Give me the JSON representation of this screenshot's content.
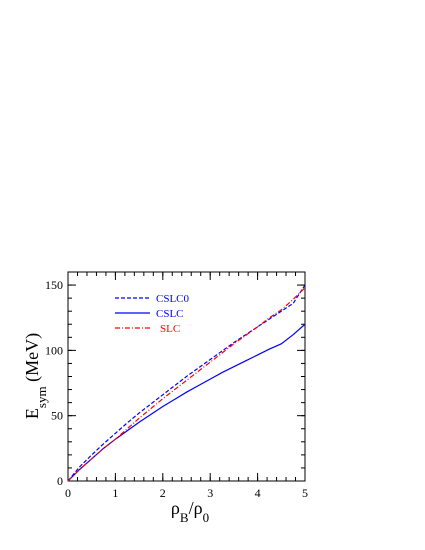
{
  "colors": {
    "background": "#ffffff",
    "axis": "#000000"
  },
  "chart_data": {
    "type": "line",
    "title": "",
    "xlabel": {
      "main": "ρ",
      "sub1": "B",
      "sep": "/ρ",
      "sub2": "0"
    },
    "ylabel": {
      "main": "E",
      "sub": "sym",
      "rest": " (MeV)"
    },
    "xlim": [
      0,
      5
    ],
    "ylim": [
      0,
      160
    ],
    "xticks": [
      0,
      1,
      2,
      3,
      4,
      5
    ],
    "yticks": [
      0,
      50,
      100,
      150
    ],
    "grid": false,
    "legend_position": "top-left",
    "series": [
      {
        "name": "CSLC0",
        "color": "#0000ff",
        "dash": "dashed",
        "x": [
          0,
          0.25,
          0.5,
          0.75,
          1.0,
          1.25,
          1.5,
          1.75,
          2.0,
          2.25,
          2.5,
          2.75,
          3.0,
          3.25,
          3.5,
          3.75,
          4.0,
          4.25,
          4.5,
          4.75,
          5.0
        ],
        "y": [
          0,
          11,
          20,
          28.5,
          36.5,
          44.5,
          52,
          59,
          66,
          73,
          80,
          86.5,
          93,
          99.5,
          106,
          112,
          118,
          124,
          130,
          136,
          150
        ]
      },
      {
        "name": "CSLC",
        "color": "#0000ff",
        "dash": "solid",
        "x": [
          0,
          0.25,
          0.5,
          0.75,
          1.0,
          1.25,
          1.5,
          1.75,
          2.0,
          2.25,
          2.5,
          2.75,
          3.0,
          3.25,
          3.5,
          3.75,
          4.0,
          4.25,
          4.5,
          4.75,
          5.0
        ],
        "y": [
          0,
          9,
          17,
          25,
          32,
          38.5,
          45,
          51,
          57,
          62.5,
          68,
          73,
          78,
          83,
          87.5,
          92,
          96.5,
          101,
          105,
          112,
          120
        ]
      },
      {
        "name": "SLC",
        "color": "#ff0000",
        "dash": "dashdot",
        "x": [
          0,
          0.25,
          0.5,
          0.75,
          1.0,
          1.25,
          1.5,
          1.75,
          2.0,
          2.25,
          2.5,
          2.75,
          3.0,
          3.25,
          3.5,
          3.75,
          4.0,
          4.25,
          4.5,
          4.75,
          5.0
        ],
        "y": [
          0,
          9,
          17,
          25,
          32,
          40,
          48,
          55.5,
          63,
          70,
          77,
          84,
          91,
          98,
          105,
          111.5,
          118,
          125,
          131,
          139,
          148
        ]
      }
    ]
  }
}
